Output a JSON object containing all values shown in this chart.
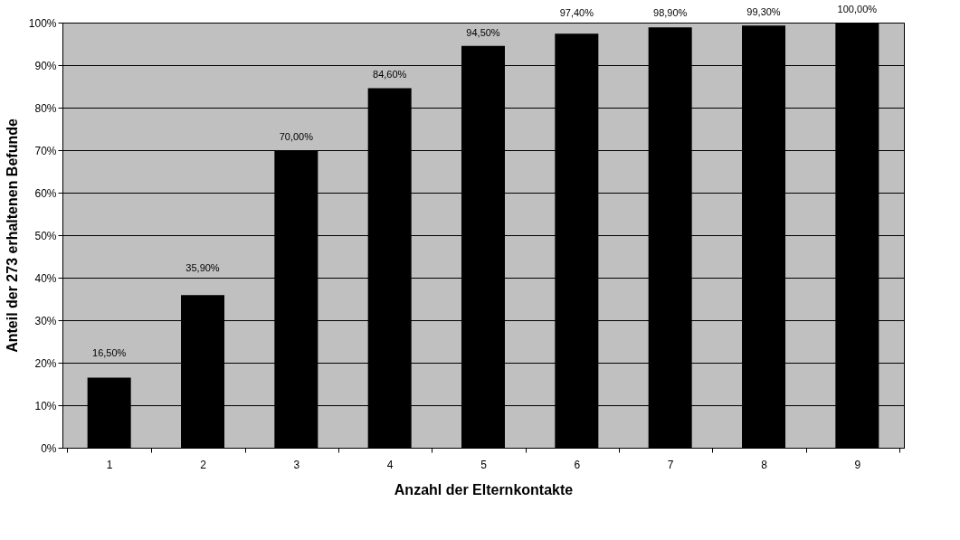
{
  "chart_data": {
    "type": "bar",
    "xlabel": "Anzahl der Elternkontakte",
    "ylabel": "Anteil der 273 erhaltenen Befunde",
    "categories": [
      "1",
      "2",
      "3",
      "4",
      "5",
      "6",
      "7",
      "8",
      "9"
    ],
    "values": [
      16.5,
      35.9,
      70.0,
      84.6,
      94.5,
      97.4,
      98.9,
      99.3,
      100.0
    ],
    "value_labels": [
      "16,50%",
      "35,90%",
      "70,00%",
      "84,60%",
      "94,50%",
      "97,40%",
      "98,90%",
      "99,30%",
      "100,00%"
    ],
    "color": "#000000",
    "ylim": [
      0,
      100
    ],
    "yticks": [
      {
        "value": 0,
        "label": "0%"
      },
      {
        "value": 10,
        "label": "10%"
      },
      {
        "value": 20,
        "label": "20%"
      },
      {
        "value": 30,
        "label": "30%"
      },
      {
        "value": 40,
        "label": "40%"
      },
      {
        "value": 50,
        "label": "50%"
      },
      {
        "value": 60,
        "label": "60%"
      },
      {
        "value": 70,
        "label": "70%"
      },
      {
        "value": 80,
        "label": "80%"
      },
      {
        "value": 90,
        "label": "90%"
      },
      {
        "value": 100,
        "label": "100%"
      }
    ],
    "grid": "y"
  }
}
